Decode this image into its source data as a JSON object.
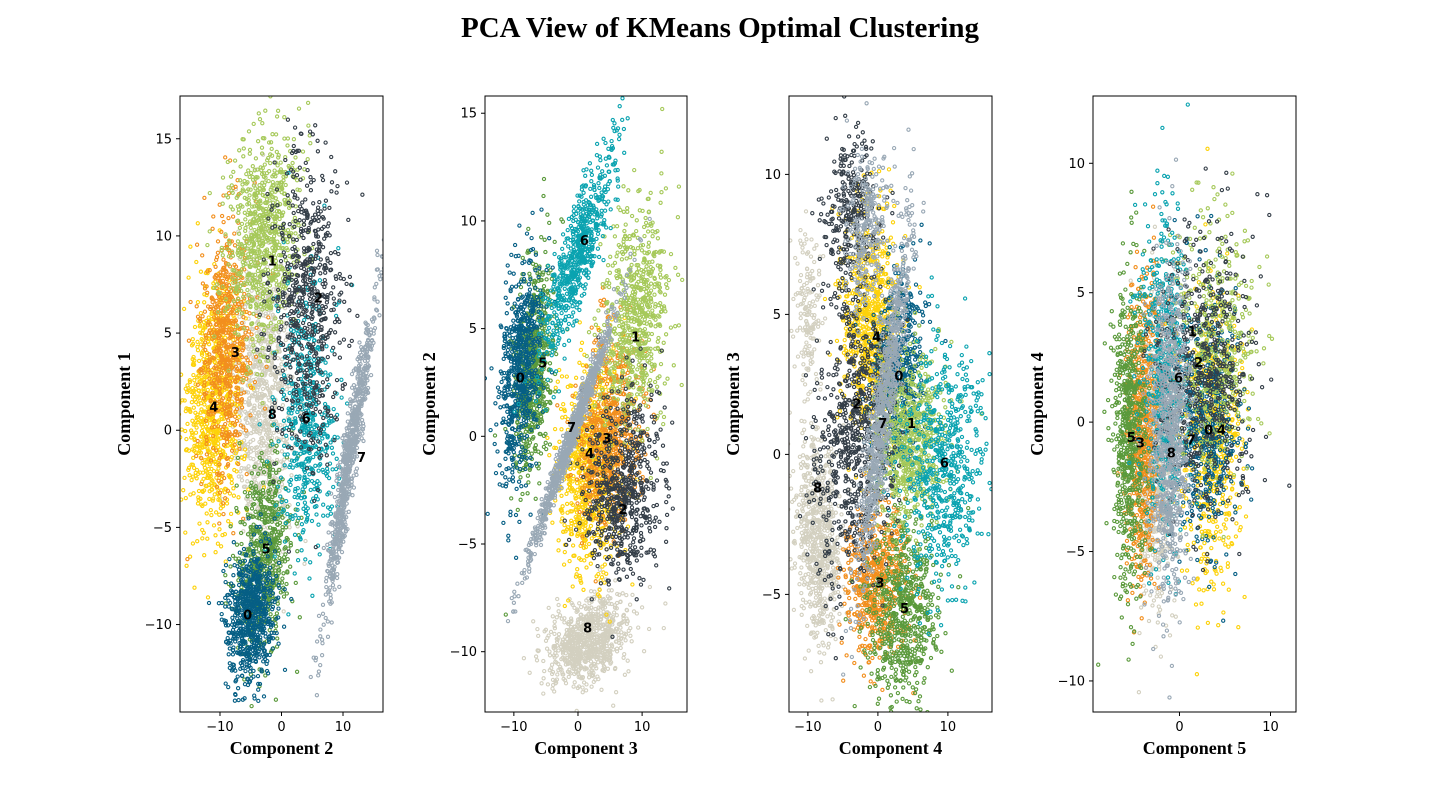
{
  "title": "PCA View of KMeans Optimal Clustering",
  "colors": {
    "0": "#065f85",
    "1": "#a6c95a",
    "2": "#343e48",
    "3": "#f28f1e",
    "4": "#fdd20b",
    "5": "#5b9a3c",
    "6": "#0aa3b0",
    "7": "#99a8b5",
    "8": "#d3d0c0"
  },
  "chart_data": [
    {
      "type": "scatter",
      "xlabel": "Component 2",
      "ylabel": "Component 1",
      "xlim": [
        -16.5,
        16.5
      ],
      "ylim": [
        -14.5,
        17.2
      ],
      "xticks": [
        -10,
        0,
        10
      ],
      "yticks": [
        -10,
        -5,
        0,
        5,
        10,
        15
      ],
      "xtick_labels": [
        "−10",
        "0",
        "10"
      ],
      "ytick_labels": [
        "−10",
        "−5",
        "0",
        "5",
        "10",
        "15"
      ],
      "clusters": [
        {
          "name": "0",
          "cx": -5,
          "cy": -9.5,
          "sx": 2.0,
          "sy": 1.7,
          "corr": 0.2,
          "n": 700,
          "label_x": -5.5,
          "label_y": -9.5
        },
        {
          "name": "1",
          "cx": -3,
          "cy": 10,
          "sx": 3.0,
          "sy": 2.7,
          "corr": 0.2,
          "n": 750,
          "label_x": -1.5,
          "label_y": 8.7
        },
        {
          "name": "2",
          "cx": 4,
          "cy": 6.5,
          "sx": 2.8,
          "sy": 3.8,
          "corr": 0.1,
          "n": 650,
          "label_x": 6,
          "label_y": 6.8
        },
        {
          "name": "3",
          "cx": -9,
          "cy": 4.5,
          "sx": 2.0,
          "sy": 3.3,
          "corr": 0.1,
          "n": 650,
          "label_x": -7.5,
          "label_y": 4
        },
        {
          "name": "4",
          "cx": -11,
          "cy": 1.2,
          "sx": 2.4,
          "sy": 3.0,
          "corr": 0.1,
          "n": 800,
          "label_x": -11,
          "label_y": 1.2
        },
        {
          "name": "5",
          "cx": -3,
          "cy": -6.5,
          "sx": 2.3,
          "sy": 2.3,
          "corr": 0.2,
          "n": 650,
          "label_x": -2.5,
          "label_y": -6.1
        },
        {
          "name": "6",
          "cx": 4,
          "cy": 0.5,
          "sx": 2.6,
          "sy": 3.3,
          "corr": 0.0,
          "n": 550,
          "label_x": 4,
          "label_y": 0.6
        },
        {
          "name": "7",
          "cx": 11,
          "cy": -1.5,
          "sx": 2.0,
          "sy": 3.9,
          "corr": 0.95,
          "n": 800,
          "label_x": 13,
          "label_y": -1.4
        },
        {
          "name": "8",
          "cx": -3,
          "cy": 1.5,
          "sx": 2.3,
          "sy": 4.0,
          "corr": 0.0,
          "n": 800,
          "label_x": -1.5,
          "label_y": 0.8
        }
      ]
    },
    {
      "type": "scatter",
      "xlabel": "Component 3",
      "ylabel": "Component 2",
      "xlim": [
        -14.5,
        17
      ],
      "ylim": [
        -12.8,
        15.8
      ],
      "xticks": [
        -10,
        0,
        10
      ],
      "yticks": [
        -10,
        -5,
        0,
        5,
        10,
        15
      ],
      "xtick_labels": [
        "−10",
        "0",
        "10"
      ],
      "ytick_labels": [
        "−10",
        "−5",
        "0",
        "5",
        "10",
        "15"
      ],
      "clusters": [
        {
          "name": "0",
          "cx": -9,
          "cy": 3,
          "sx": 1.6,
          "sy": 2.5,
          "corr": 0.4,
          "n": 650,
          "label_x": -9,
          "label_y": 2.7
        },
        {
          "name": "1",
          "cx": 9,
          "cy": 5.5,
          "sx": 2.7,
          "sy": 2.5,
          "corr": 0.2,
          "n": 700,
          "label_x": 9,
          "label_y": 4.6
        },
        {
          "name": "2",
          "cx": 7,
          "cy": -2.5,
          "sx": 3.0,
          "sy": 2.0,
          "corr": 0.1,
          "n": 650,
          "label_x": 7,
          "label_y": -3.4
        },
        {
          "name": "3",
          "cx": 5,
          "cy": 0.3,
          "sx": 2.5,
          "sy": 2.3,
          "corr": 0.2,
          "n": 650,
          "label_x": 4.5,
          "label_y": -0.1
        },
        {
          "name": "4",
          "cx": 2,
          "cy": -1.5,
          "sx": 2.6,
          "sy": 2.5,
          "corr": 0.1,
          "n": 800,
          "label_x": 1.8,
          "label_y": -0.8
        },
        {
          "name": "5",
          "cx": -7,
          "cy": 3,
          "sx": 1.5,
          "sy": 2.5,
          "corr": 0.4,
          "n": 650,
          "label_x": -5.5,
          "label_y": 3.4
        },
        {
          "name": "6",
          "cx": 0,
          "cy": 8.5,
          "sx": 2.8,
          "sy": 2.5,
          "corr": 0.85,
          "n": 650,
          "label_x": 1,
          "label_y": 9.1
        },
        {
          "name": "7",
          "cx": -1,
          "cy": 0,
          "sx": 3.5,
          "sy": 3.0,
          "corr": 0.99,
          "n": 800,
          "label_x": -1,
          "label_y": 0.4
        },
        {
          "name": "8",
          "cx": 1.5,
          "cy": -9.5,
          "sx": 3.2,
          "sy": 1.0,
          "corr": 0.3,
          "n": 800,
          "label_x": 1.5,
          "label_y": -8.9
        }
      ]
    },
    {
      "type": "scatter",
      "xlabel": "Component 4",
      "ylabel": "Component 3",
      "xlim": [
        -12.7,
        16.3
      ],
      "ylim": [
        -9.2,
        12.8
      ],
      "xticks": [
        -10,
        0,
        10
      ],
      "yticks": [
        -5,
        0,
        5,
        10
      ],
      "xtick_labels": [
        "−10",
        "0",
        "10"
      ],
      "ytick_labels": [
        "−5",
        "0",
        "5",
        "10"
      ],
      "clusters": [
        {
          "name": "0",
          "cx": 3,
          "cy": 2.8,
          "sx": 1.8,
          "sy": 1.8,
          "corr": 0.1,
          "n": 600,
          "label_x": 3,
          "label_y": 2.8
        },
        {
          "name": "1",
          "cx": 4.5,
          "cy": 0.5,
          "sx": 2.5,
          "sy": 1.5,
          "corr": 0.1,
          "n": 650,
          "label_x": 4.8,
          "label_y": 1.1
        },
        {
          "name": "2",
          "cx": -3.5,
          "cy": 0.5,
          "sx": 2.6,
          "sy": 2.6,
          "corr": 0.1,
          "n": 700,
          "label_x": -3,
          "label_y": 1.8
        },
        {
          "name": "3",
          "cx": -0.5,
          "cy": -4.5,
          "sx": 2.2,
          "sy": 1.4,
          "corr": 0.1,
          "n": 600,
          "label_x": 0.3,
          "label_y": -4.6
        },
        {
          "name": "4",
          "cx": -1,
          "cy": 4.5,
          "sx": 2.1,
          "sy": 2.0,
          "corr": 0.0,
          "n": 750,
          "label_x": -0.2,
          "label_y": 4.2
        },
        {
          "name": "5",
          "cx": 3.5,
          "cy": -5.5,
          "sx": 2.7,
          "sy": 1.6,
          "corr": 0.1,
          "n": 650,
          "label_x": 3.8,
          "label_y": -5.5
        },
        {
          "name": "6",
          "cx": 9.5,
          "cy": -0.5,
          "sx": 2.8,
          "sy": 2.2,
          "corr": 0.1,
          "n": 600,
          "label_x": 9.5,
          "label_y": -0.3
        },
        {
          "name": "7",
          "cx": 1,
          "cy": 2,
          "sx": 2.0,
          "sy": 3.3,
          "corr": 0.9,
          "n": 800,
          "label_x": 0.7,
          "label_y": 1.1
        },
        {
          "name": "8",
          "cx": -8.5,
          "cy": -3,
          "sx": 1.6,
          "sy": 1.8,
          "corr": -0.2,
          "n": 700,
          "label_x": -8.6,
          "label_y": -1.2
        },
        {
          "name": "8",
          "cx": -10,
          "cy": 5,
          "sx": 0.9,
          "sy": 1.5,
          "corr": 0.0,
          "n": 150,
          "label_x": null,
          "label_y": null
        },
        {
          "name": "2",
          "cx": -4,
          "cy": 8.5,
          "sx": 2.0,
          "sy": 1.5,
          "corr": 0.1,
          "n": 300,
          "label_x": null,
          "label_y": null
        },
        {
          "name": "7",
          "cx": -1.5,
          "cy": 8.0,
          "sx": 1.6,
          "sy": 1.3,
          "corr": 0.1,
          "n": 250,
          "label_x": null,
          "label_y": null
        }
      ]
    },
    {
      "type": "scatter",
      "xlabel": "Component 5",
      "ylabel": "Component 4",
      "xlim": [
        -9.5,
        12.8
      ],
      "ylim": [
        -11.2,
        12.6
      ],
      "xticks": [
        0,
        10
      ],
      "yticks": [
        -10,
        -5,
        0,
        5,
        10
      ],
      "xtick_labels": [
        "0",
        "10"
      ],
      "ytick_labels": [
        "−10",
        "−5",
        "0",
        "5",
        "10"
      ],
      "clusters": [
        {
          "name": "0",
          "cx": 3,
          "cy": 0,
          "sx": 1.8,
          "sy": 2.5,
          "corr": 0.0,
          "n": 550,
          "label_x": 3.2,
          "label_y": -0.3
        },
        {
          "name": "1",
          "cx": 4,
          "cy": 3,
          "sx": 2.2,
          "sy": 2.5,
          "corr": 0.1,
          "n": 450,
          "label_x": 1.4,
          "label_y": 3.5
        },
        {
          "name": "2",
          "cx": 3,
          "cy": 2,
          "sx": 2.5,
          "sy": 2.8,
          "corr": 0.0,
          "n": 550,
          "label_x": 2.1,
          "label_y": 2.3
        },
        {
          "name": "3",
          "cx": -4,
          "cy": -0.5,
          "sx": 0.9,
          "sy": 3.0,
          "corr": 0.1,
          "n": 650,
          "label_x": -4.3,
          "label_y": -0.8
        },
        {
          "name": "4",
          "cx": 3.5,
          "cy": -0.5,
          "sx": 1.8,
          "sy": 3.0,
          "corr": 0.0,
          "n": 600,
          "label_x": 4.6,
          "label_y": -0.3
        },
        {
          "name": "5",
          "cx": -5.5,
          "cy": -0.5,
          "sx": 0.9,
          "sy": 3.0,
          "corr": 0.0,
          "n": 650,
          "label_x": -5.3,
          "label_y": -0.6
        },
        {
          "name": "6",
          "cx": -1.5,
          "cy": 2,
          "sx": 1.2,
          "sy": 3.0,
          "corr": 0.0,
          "n": 550,
          "label_x": -0.1,
          "label_y": 1.7
        },
        {
          "name": "7",
          "cx": -1,
          "cy": -0.5,
          "sx": 1.0,
          "sy": 3.2,
          "corr": 0.0,
          "n": 800,
          "label_x": 1.3,
          "label_y": -0.7
        },
        {
          "name": "8",
          "cx": -2.5,
          "cy": -1,
          "sx": 1.0,
          "sy": 3.0,
          "corr": 0.0,
          "n": 750,
          "label_x": -0.9,
          "label_y": -1.2
        }
      ]
    }
  ]
}
